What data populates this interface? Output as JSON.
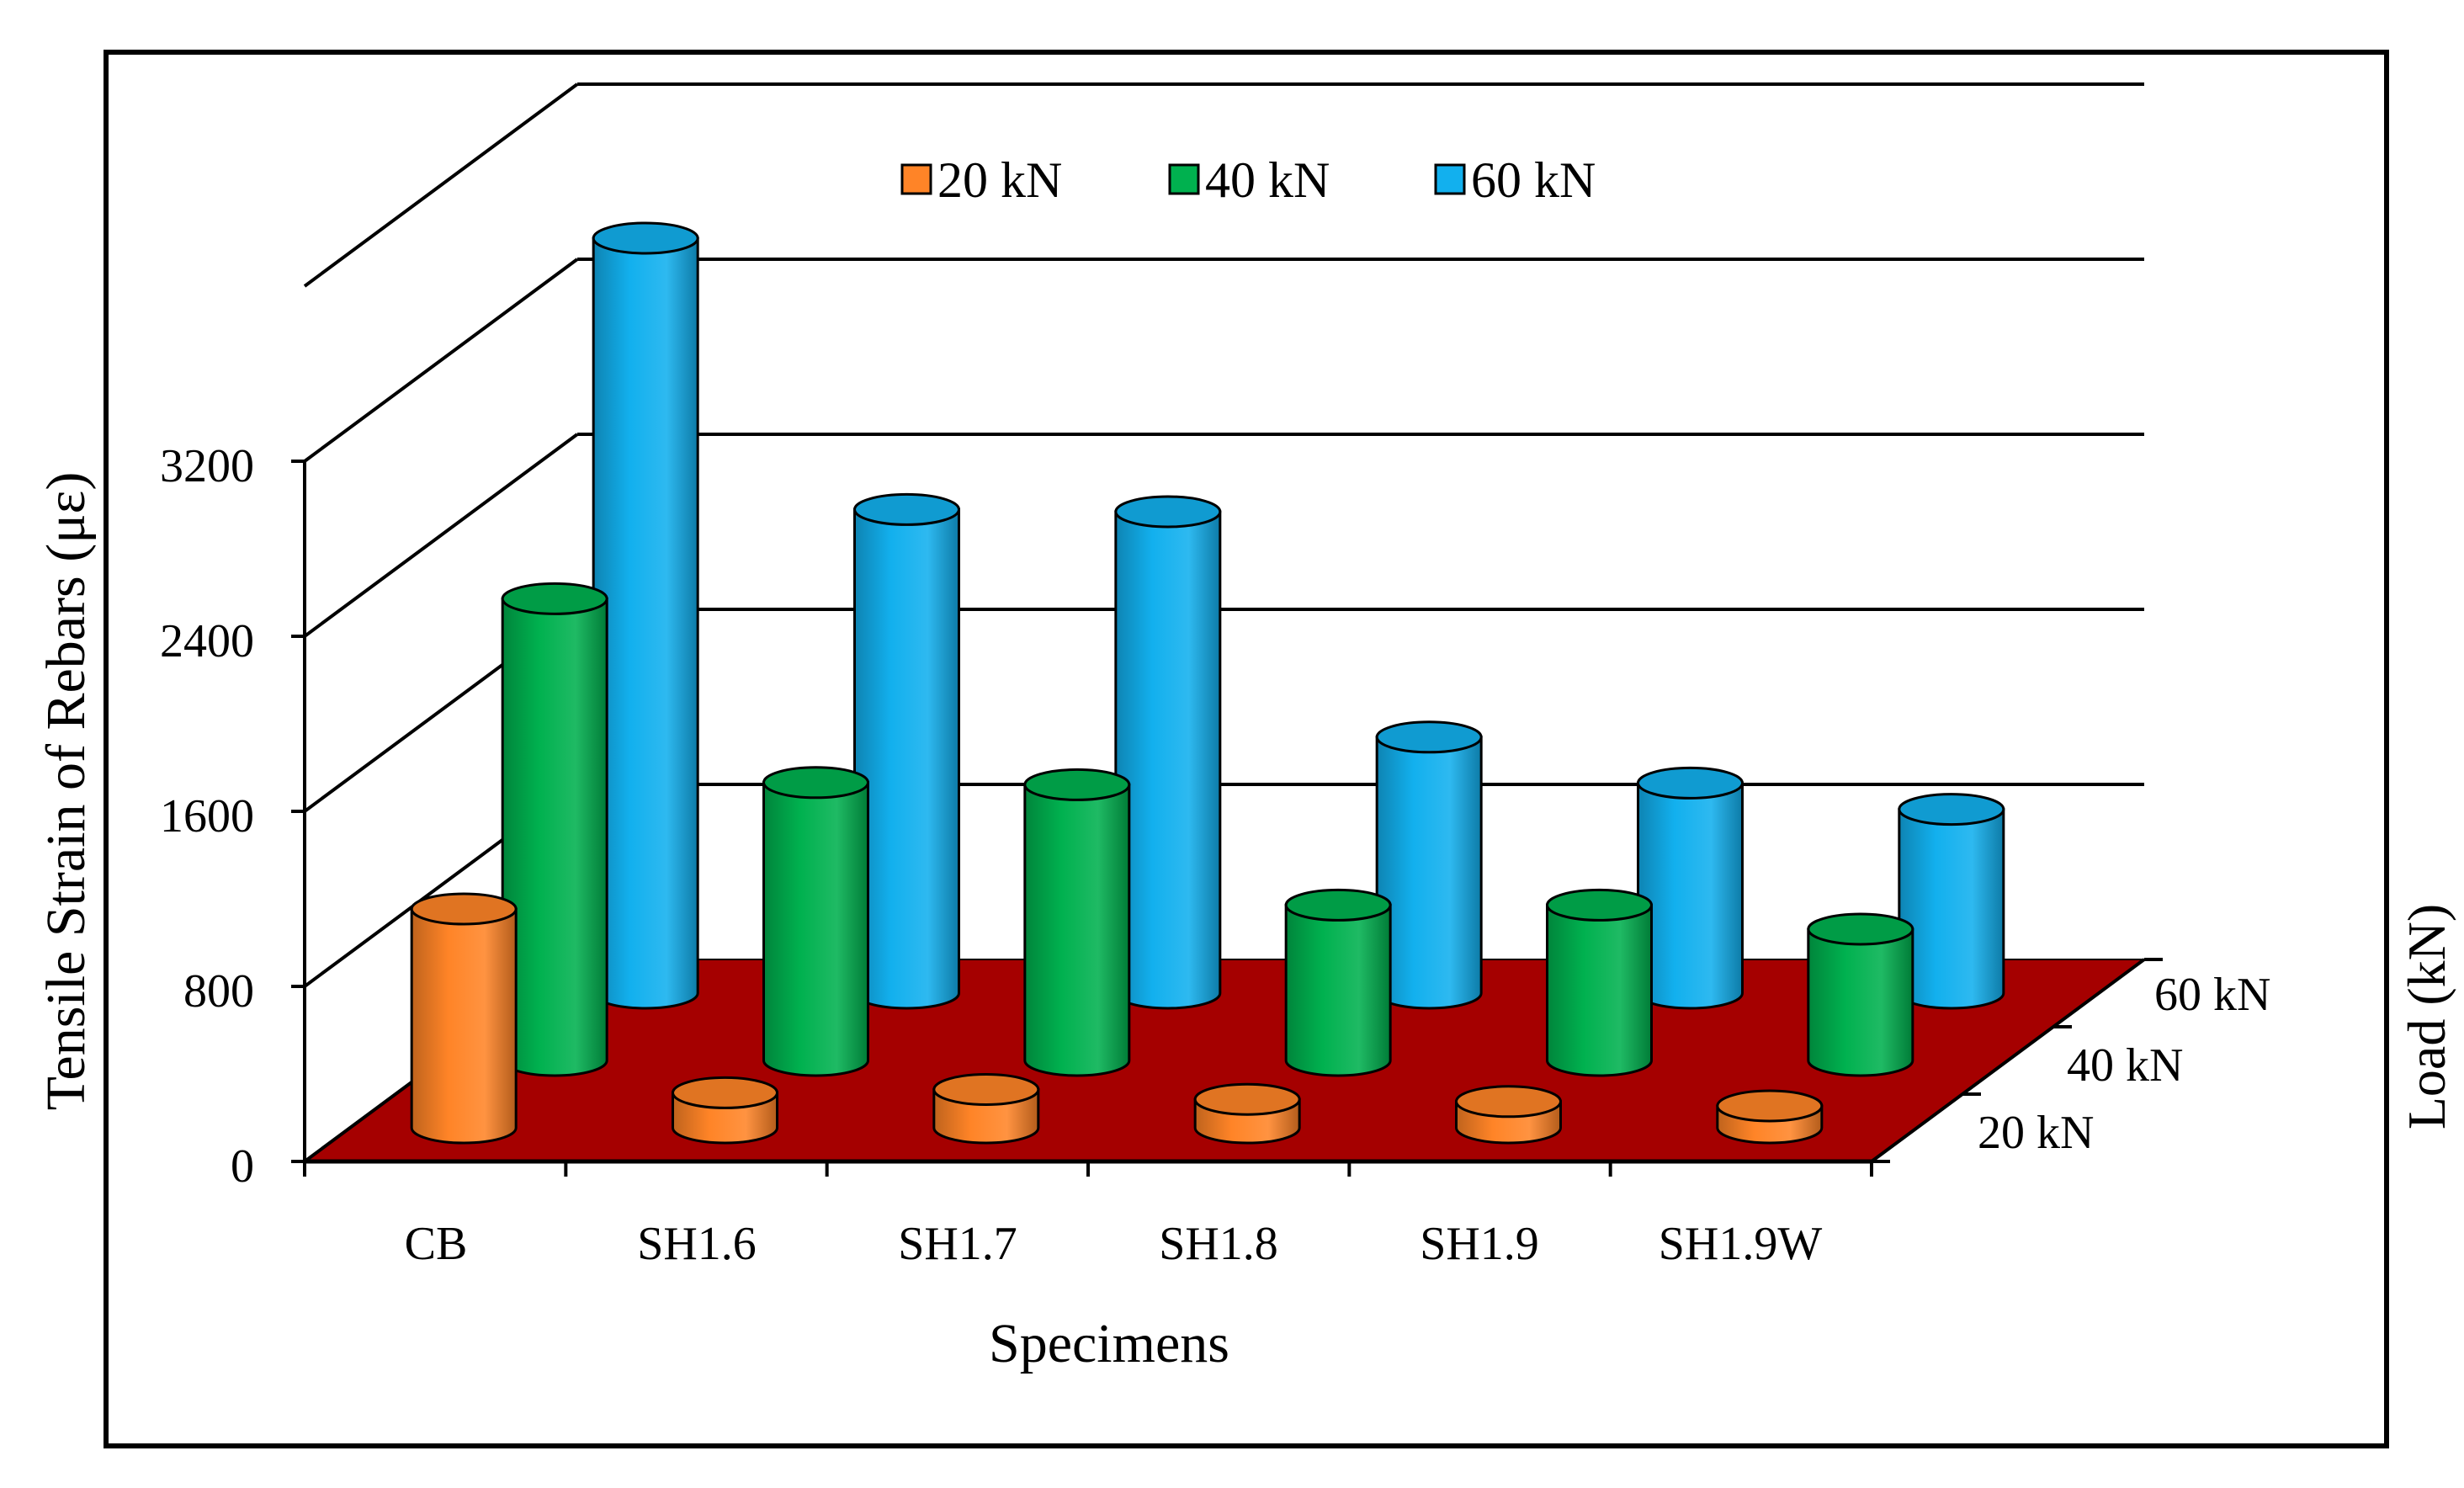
{
  "chart_data": {
    "type": "bar",
    "style": "3d-cylinder",
    "categories": [
      "CB",
      "SH1.6",
      "SH1.7",
      "SH1.8",
      "SH1.9",
      "SH1.9W"
    ],
    "series": [
      {
        "name": "20 kN",
        "color": "#FF8427",
        "values": [
          1000,
          160,
          175,
          130,
          120,
          100
        ]
      },
      {
        "name": "40 kN",
        "color": "#00B14F",
        "values": [
          2110,
          1270,
          1260,
          710,
          710,
          600
        ]
      },
      {
        "name": "60 kN",
        "color": "#12B0EE",
        "values": [
          3450,
          2210,
          2200,
          1170,
          960,
          840
        ]
      }
    ],
    "xlabel": "Specimens",
    "ylabel": "Tensile Strain of Rebars (με)",
    "zlabel": "Load (kN)",
    "z_ticks": [
      "20 kN",
      "40 kN",
      "60 kN"
    ],
    "yticks": [
      "0",
      "800",
      "1600",
      "2400",
      "3200"
    ],
    "ylim": [
      0,
      4000
    ],
    "legend": [
      "20 kN",
      "40 kN",
      "60 kN"
    ],
    "legend_position": "top-center",
    "floor_color": "#A50000",
    "grid": true
  }
}
